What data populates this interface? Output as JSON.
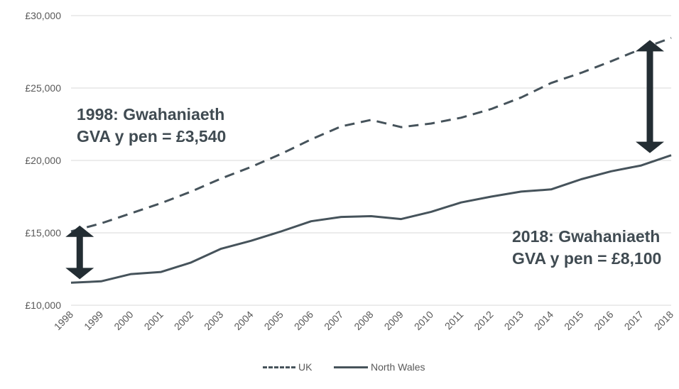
{
  "chart_data": {
    "type": "line",
    "title": "",
    "xlabel": "",
    "ylabel": "",
    "categories": [
      "1998",
      "1999",
      "2000",
      "2001",
      "2002",
      "2003",
      "2004",
      "2005",
      "2006",
      "2007",
      "2008",
      "2009",
      "2010",
      "2011",
      "2012",
      "2013",
      "2014",
      "2015",
      "2016",
      "2017",
      "2018"
    ],
    "y_ticks": [
      "£10,000",
      "£15,000",
      "£20,000",
      "£25,000",
      "£30,000"
    ],
    "ylim": [
      10000,
      30000
    ],
    "grid": true,
    "legend_position": "bottom",
    "series": [
      {
        "name": "UK",
        "style": "dashed",
        "color": "#46535b",
        "values": [
          15100,
          15650,
          16350,
          17050,
          17850,
          18750,
          19550,
          20450,
          21450,
          22350,
          22800,
          22300,
          22550,
          22950,
          23550,
          24350,
          25350,
          26050,
          26850,
          27700,
          28460
        ]
      },
      {
        "name": "North Wales",
        "style": "solid",
        "color": "#46535b",
        "values": [
          11560,
          11650,
          12150,
          12300,
          12950,
          13900,
          14450,
          15100,
          15800,
          16100,
          16150,
          15950,
          16450,
          17100,
          17500,
          17850,
          18000,
          18700,
          19250,
          19650,
          20360
        ]
      }
    ],
    "annotations": [
      {
        "id": "gap-1998",
        "line1": "1998: Gwahaniaeth",
        "line2": "GVA y pen = £3,540"
      },
      {
        "id": "gap-2018",
        "line1": "2018: Gwahaniaeth",
        "line2": "GVA y pen = £8,100"
      }
    ]
  }
}
